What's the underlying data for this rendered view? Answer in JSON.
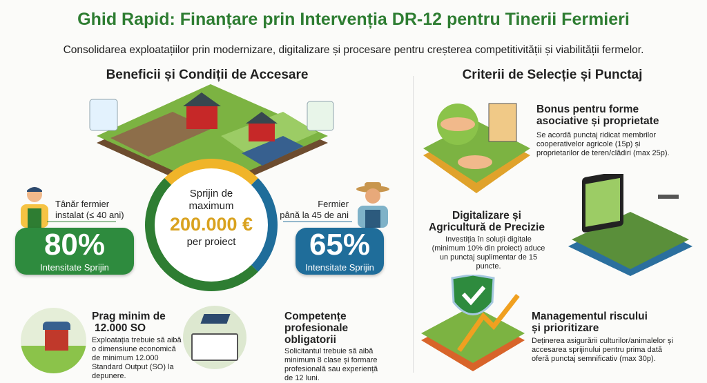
{
  "title": "Ghid Rapid: Finanțare prin Intervenția DR-12 pentru Tinerii Fermieri",
  "subtitle": "Consolidarea exploatațiilor prin modernizare, digitalizare și procesare pentru creșterea competitivității și viabilității fermelor.",
  "left": {
    "heading": "Beneficii și Condiții de Accesare",
    "center": {
      "line1": "Sprijin de",
      "line2": "maximum",
      "amount": "200.000 €",
      "line3": "per proiect"
    },
    "young": {
      "label1": "Tânăr fermier",
      "label2": "instalat (≤ 40 ani)",
      "percent": "80%",
      "caption": "Intensitate Sprijin",
      "color": "#2e8b3e"
    },
    "older": {
      "label1": "Fermier",
      "label2": "până la 45 de ani",
      "percent": "65%",
      "caption": "Intensitate Sprijin",
      "color": "#1f6d9a"
    },
    "items": [
      {
        "title1": "Prag minim de",
        "title2": "12.000 SO",
        "text": "Exploatația trebuie să aibă o dimensiune economică de minimum 12.000 Standard Output (SO) la depunere.",
        "icon": "barn-farm-icon"
      },
      {
        "title1": "Competențe",
        "title2": "profesionale",
        "title3": "obligatorii",
        "text": "Solicitantul trebuie să aibă minimum 8 clase și formare profesională sau experiență de 12 luni.",
        "icon": "graduation-book-tools-icon"
      }
    ]
  },
  "right": {
    "heading": "Criterii de Selecție și Punctaj",
    "items": [
      {
        "title1": "Bonus pentru forme",
        "title2": "asociative și proprietate",
        "text": "Se acordă punctaj ridicat membrilor cooperativelor agricole (15p) și proprietarilor de teren/clădiri (max 25p).",
        "icon": "handshake-building-icon"
      },
      {
        "title1": "Digitalizare și",
        "title2": "Agricultură de Precizie",
        "text": "Investiția în soluții digitale (minimum 10% din proiect) aduce un punctaj suplimentar de 15 puncte.",
        "icon": "tablet-drone-field-icon"
      },
      {
        "title1": "Managementul riscului",
        "title2": "și prioritizare",
        "text": "Deținerea asigurării culturilor/animalelor și accesarea sprijinului pentru prima dată oferă punctaj semnificativ (max 30p).",
        "icon": "shield-growth-icon"
      }
    ]
  }
}
